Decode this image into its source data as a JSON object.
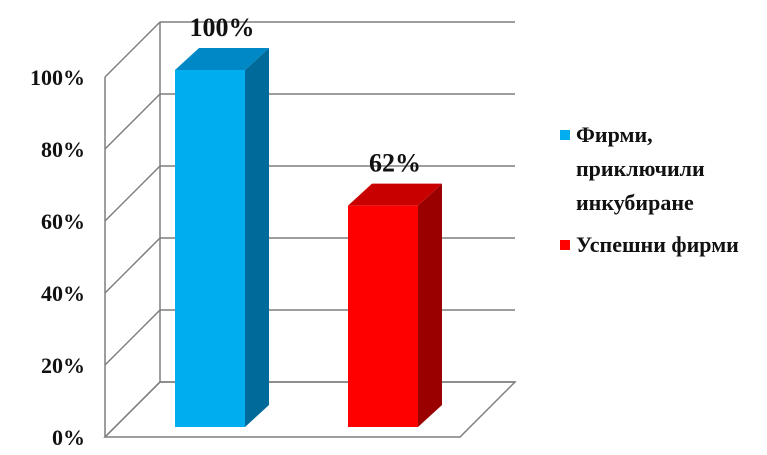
{
  "chart_data": {
    "type": "bar",
    "categories": [
      "Фирми, приключили инкубиране",
      "Успешни фирми"
    ],
    "values": [
      100,
      62
    ],
    "data_labels": [
      "100%",
      "62%"
    ],
    "yticks": [
      "0%",
      "20%",
      "40%",
      "60%",
      "80%",
      "100%"
    ],
    "ylim": [
      0,
      100
    ],
    "grid": true,
    "legend_position": "right",
    "legend": [
      {
        "label": "Фирми, приключили инкубиране",
        "color": "#00aeef"
      },
      {
        "label": "Успешни фирми",
        "color": "#ff0000"
      }
    ],
    "colors": {
      "bar1_front": "#00aeef",
      "bar1_side": "#006b9a",
      "bar1_top": "#0088c6",
      "bar2_front": "#ff0000",
      "bar2_side": "#9a0000",
      "bar2_top": "#c80000"
    }
  }
}
